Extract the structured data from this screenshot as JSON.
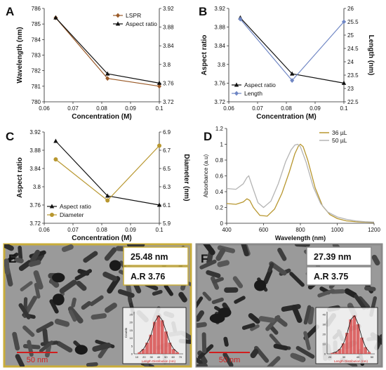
{
  "colors": {
    "black": "#111111",
    "gold": "#b8972f",
    "brown": "#9a5a28",
    "blue": "#6f86c4",
    "gray": "#b4b4b4",
    "tem_border_e": "#c9ad3a",
    "tem_border_f": "#8a8a8a",
    "scale_red": "#d21e1e",
    "hist_red": "#d63a3a"
  },
  "chart_data": [
    {
      "panel": "A",
      "type": "line",
      "x": [
        0.064,
        0.082,
        0.1
      ],
      "xlim": [
        0.06,
        0.1
      ],
      "xticks": [
        "0.06",
        "0.07",
        "0.08",
        "0.09",
        "0.1"
      ],
      "xlabel": "Concentration (M)",
      "ylabel": "Wavelength (nm)",
      "ylim": [
        780,
        786
      ],
      "yticks": [
        "780",
        "781",
        "782",
        "783",
        "784",
        "785",
        "786"
      ],
      "y2label": "",
      "y2lim": [
        3.72,
        3.92
      ],
      "y2ticks": [
        "3.72",
        "3.76",
        "3.8",
        "3.84",
        "3.88",
        "3.92"
      ],
      "legend": "top-right",
      "series": [
        {
          "name": "LSPR",
          "axis": "left",
          "color": "brown",
          "marker": "diamond",
          "values": [
            785.4,
            781.5,
            781.0
          ]
        },
        {
          "name": "Aspect ratio",
          "axis": "right",
          "color": "black",
          "marker": "triangle",
          "values": [
            3.9,
            3.78,
            3.76
          ]
        }
      ]
    },
    {
      "panel": "B",
      "type": "line",
      "x": [
        0.064,
        0.082,
        0.1
      ],
      "xlim": [
        0.06,
        0.1
      ],
      "xticks": [
        "0.06",
        "0.07",
        "0.08",
        "0.09",
        "0.1"
      ],
      "xlabel": "Concentration (M)",
      "ylabel": "Aspect ratio",
      "ylim": [
        3.72,
        3.92
      ],
      "yticks": [
        "3.72",
        "3.76",
        "3.8",
        "3.84",
        "3.88",
        "3.92"
      ],
      "y2label": "Length (nm)",
      "y2lim": [
        22.5,
        26
      ],
      "y2ticks": [
        "22.5",
        "23",
        "23.5",
        "24",
        "24.5",
        "25",
        "25.5",
        "26"
      ],
      "legend": "bottom-left",
      "series": [
        {
          "name": "Aspect ratio",
          "axis": "left",
          "color": "black",
          "marker": "triangle",
          "values": [
            3.9,
            3.78,
            3.76
          ]
        },
        {
          "name": "Length",
          "axis": "right",
          "color": "blue",
          "marker": "diamond",
          "values": [
            25.6,
            23.3,
            25.5
          ]
        }
      ]
    },
    {
      "panel": "C",
      "type": "line",
      "x": [
        0.064,
        0.082,
        0.1
      ],
      "xlim": [
        0.06,
        0.1
      ],
      "xticks": [
        "0.06",
        "0.07",
        "0.08",
        "0.09",
        "0.1"
      ],
      "xlabel": "Concentration (M)",
      "ylabel": "Aspect ratio",
      "ylim": [
        3.72,
        3.92
      ],
      "yticks": [
        "3.72",
        "3.76",
        "3.8",
        "3.84",
        "3.88",
        "3.92"
      ],
      "y2label": "Diameter (nm)",
      "y2lim": [
        5.9,
        6.9
      ],
      "y2ticks": [
        "5.9",
        "6.1",
        "6.3",
        "6.5",
        "6.7",
        "6.9"
      ],
      "legend": "bottom-left",
      "series": [
        {
          "name": "Aspect ratio",
          "axis": "left",
          "color": "black",
          "marker": "triangle",
          "values": [
            3.9,
            3.78,
            3.76
          ]
        },
        {
          "name": "Diameter",
          "axis": "right",
          "color": "gold",
          "marker": "circle",
          "values": [
            6.6,
            6.15,
            6.75
          ]
        }
      ]
    },
    {
      "panel": "D",
      "type": "line",
      "xlim": [
        400,
        1200
      ],
      "xticks": [
        "400",
        "600",
        "800",
        "1000",
        "1200"
      ],
      "xlabel": "Wavelength (nm)",
      "ylabel": "Absorbance (a.u)",
      "ylim": [
        0,
        1.2
      ],
      "yticks": [
        "0",
        "0.2",
        "0.4",
        "0.6",
        "0.8",
        "1",
        "1.2"
      ],
      "legend": "top-right",
      "series": [
        {
          "name": "36 µL",
          "color": "gold",
          "x": [
            400,
            450,
            490,
            510,
            525,
            545,
            580,
            620,
            660,
            700,
            740,
            770,
            790,
            800,
            815,
            840,
            880,
            920,
            960,
            1000,
            1050,
            1100,
            1150,
            1200
          ],
          "values": [
            0.25,
            0.24,
            0.27,
            0.31,
            0.29,
            0.2,
            0.1,
            0.09,
            0.18,
            0.38,
            0.65,
            0.88,
            0.98,
            1.0,
            0.97,
            0.8,
            0.45,
            0.22,
            0.11,
            0.06,
            0.03,
            0.02,
            0.015,
            0.01
          ]
        },
        {
          "name": "50 µL",
          "color": "gray",
          "x": [
            400,
            450,
            490,
            510,
            520,
            540,
            570,
            600,
            640,
            680,
            720,
            750,
            770,
            785,
            800,
            830,
            870,
            910,
            950,
            1000,
            1050,
            1100,
            1150,
            1200
          ],
          "values": [
            0.44,
            0.43,
            0.5,
            0.58,
            0.6,
            0.46,
            0.26,
            0.2,
            0.28,
            0.5,
            0.78,
            0.93,
            0.99,
            1.0,
            0.97,
            0.78,
            0.46,
            0.25,
            0.14,
            0.08,
            0.05,
            0.03,
            0.02,
            0.015
          ]
        }
      ]
    },
    {
      "panel": "E",
      "type": "image",
      "length_label": "25.48 nm",
      "ar_label": "A.R 3.76",
      "scale_label": "50  nm",
      "inset": {
        "type": "bar",
        "xlabel": "Length Distribution (nm)",
        "ylabel": "Counts",
        "xticks": [
          "10",
          "20",
          "30",
          "40",
          "50",
          "60",
          "70"
        ],
        "yticks": [
          "0",
          "5",
          "10",
          "15",
          "20",
          "25"
        ],
        "values": [
          1,
          3,
          7,
          12,
          20,
          24,
          21,
          14,
          7,
          3,
          1
        ]
      }
    },
    {
      "panel": "F",
      "type": "image",
      "length_label": "27.39 nm",
      "ar_label": "A.R 3.75",
      "scale_label": "50  nm",
      "inset": {
        "type": "bar",
        "xlabel": "Length Distribution (nm)",
        "ylabel": "",
        "xticks": [
          "20",
          "30",
          "40",
          "50"
        ],
        "yticks": [
          "0",
          "10",
          "20",
          "30",
          "40"
        ],
        "values": [
          1,
          2,
          5,
          11,
          22,
          36,
          40,
          31,
          17,
          7,
          2
        ]
      }
    }
  ]
}
